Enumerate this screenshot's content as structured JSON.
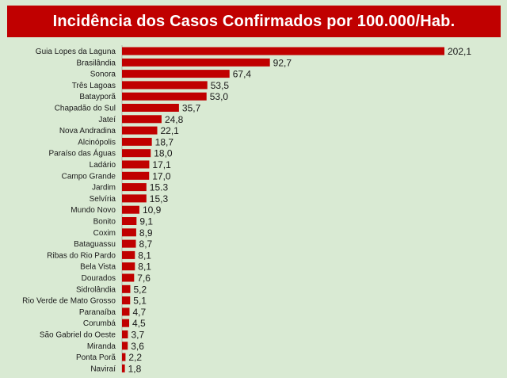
{
  "colors": {
    "background": "#d9ead3",
    "title_bg": "#c00000",
    "bar": "#c00000",
    "text": "#1a1a1a"
  },
  "chart_data": {
    "type": "bar",
    "orientation": "horizontal",
    "title": "Incidência dos Casos Confirmados por 100.000/Hab.",
    "xlabel": "",
    "ylabel": "",
    "grid": false,
    "legend": "none",
    "xlim": [
      0,
      202.1
    ],
    "categories": [
      "Guia Lopes da Laguna",
      "Brasilândia",
      "Sonora",
      "Três Lagoas",
      "Batayporã",
      "Chapadão do Sul",
      "Jateí",
      "Nova Andradina",
      "Alcinópolis",
      "Paraíso das Águas",
      "Ladário",
      "Campo Grande",
      "Jardim",
      "Selvíria",
      "Mundo Novo",
      "Bonito",
      "Coxim",
      "Bataguassu",
      "Ribas do Rio Pardo",
      "Bela Vista",
      "Dourados",
      "Sidrolândia",
      "Rio Verde de Mato Grosso",
      "Paranaíba",
      "Corumbá",
      "São Gabriel do Oeste",
      "Miranda",
      "Ponta Porã",
      "Naviraí"
    ],
    "values": [
      202.1,
      92.7,
      67.4,
      53.5,
      53.0,
      35.7,
      24.8,
      22.1,
      18.7,
      18.0,
      17.1,
      17.0,
      15.3,
      15.3,
      10.9,
      9.1,
      8.9,
      8.7,
      8.1,
      8.1,
      7.6,
      5.2,
      5.1,
      4.7,
      4.5,
      3.7,
      3.6,
      2.2,
      1.8
    ],
    "value_labels": [
      "202,1",
      "92,7",
      "67,4",
      "53,5",
      "53,0",
      "35,7",
      "24,8",
      "22,1",
      "18,7",
      "18,0",
      "17,1",
      "17,0",
      "15.3",
      "15,3",
      "10,9",
      "9,1",
      "8,9",
      "8,7",
      "8,1",
      "8,1",
      "7,6",
      "5,2",
      "5,1",
      "4,7",
      "4,5",
      "3,7",
      "3,6",
      "2,2",
      "1,8"
    ]
  }
}
